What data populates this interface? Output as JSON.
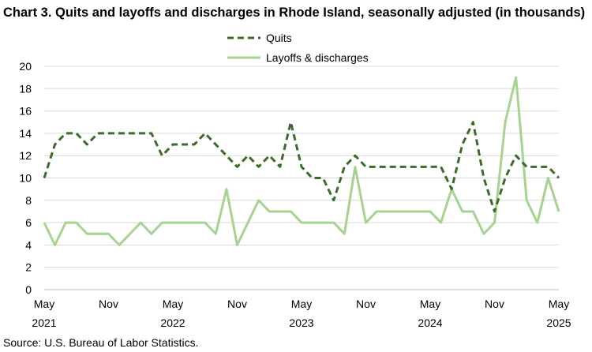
{
  "chart_data": {
    "type": "line",
    "title": "Chart 3. Quits and layoffs and discharges in Rhode Island, seasonally adjusted (in thousands)",
    "source": "Source: U.S. Bureau of Labor Statistics.",
    "xlabel": "",
    "ylabel": "",
    "ylim": [
      0,
      20
    ],
    "yticks": [
      0,
      2,
      4,
      6,
      8,
      10,
      12,
      14,
      16,
      18,
      20
    ],
    "grid": true,
    "legend_position": "top-center",
    "x": [
      "2021-05",
      "2021-06",
      "2021-07",
      "2021-08",
      "2021-09",
      "2021-10",
      "2021-11",
      "2021-12",
      "2022-01",
      "2022-02",
      "2022-03",
      "2022-04",
      "2022-05",
      "2022-06",
      "2022-07",
      "2022-08",
      "2022-09",
      "2022-10",
      "2022-11",
      "2022-12",
      "2023-01",
      "2023-02",
      "2023-03",
      "2023-04",
      "2023-05",
      "2023-06",
      "2023-07",
      "2023-08",
      "2023-09",
      "2023-10",
      "2023-11",
      "2023-12",
      "2024-01",
      "2024-02",
      "2024-03",
      "2024-04",
      "2024-05",
      "2024-06",
      "2024-07",
      "2024-08",
      "2024-09",
      "2024-10",
      "2024-11",
      "2024-12",
      "2025-01",
      "2025-02",
      "2025-03",
      "2025-04",
      "2025-05"
    ],
    "xtick_labels": [
      {
        "month": "May",
        "year": "2021",
        "index": 0
      },
      {
        "month": "Nov",
        "year": "",
        "index": 6
      },
      {
        "month": "May",
        "year": "2022",
        "index": 12
      },
      {
        "month": "Nov",
        "year": "",
        "index": 18
      },
      {
        "month": "May",
        "year": "2023",
        "index": 24
      },
      {
        "month": "Nov",
        "year": "",
        "index": 30
      },
      {
        "month": "May",
        "year": "2024",
        "index": 36
      },
      {
        "month": "Nov",
        "year": "",
        "index": 42
      },
      {
        "month": "May",
        "year": "2025",
        "index": 48
      }
    ],
    "series": [
      {
        "name": "Quits",
        "color": "#3d6b2a",
        "style": "dashed",
        "values": [
          10,
          13,
          14,
          14,
          13,
          14,
          14,
          14,
          14,
          14,
          14,
          12,
          13,
          13,
          13,
          14,
          13,
          12,
          11,
          12,
          11,
          12,
          11,
          15,
          11,
          10,
          10,
          8,
          11,
          12,
          11,
          11,
          11,
          11,
          11,
          11,
          11,
          11,
          9,
          13,
          15,
          10,
          7,
          10,
          12,
          11,
          11,
          11,
          10
        ]
      },
      {
        "name": "Layoffs & discharges",
        "color": "#a6d38f",
        "style": "solid",
        "values": [
          6,
          4,
          6,
          6,
          5,
          5,
          5,
          4,
          5,
          6,
          5,
          6,
          6,
          6,
          6,
          6,
          5,
          9,
          4,
          6,
          8,
          7,
          7,
          7,
          6,
          6,
          6,
          6,
          5,
          11,
          6,
          7,
          7,
          7,
          7,
          7,
          7,
          6,
          9,
          7,
          7,
          5,
          6,
          15,
          19,
          8,
          6,
          10,
          7
        ]
      }
    ]
  }
}
